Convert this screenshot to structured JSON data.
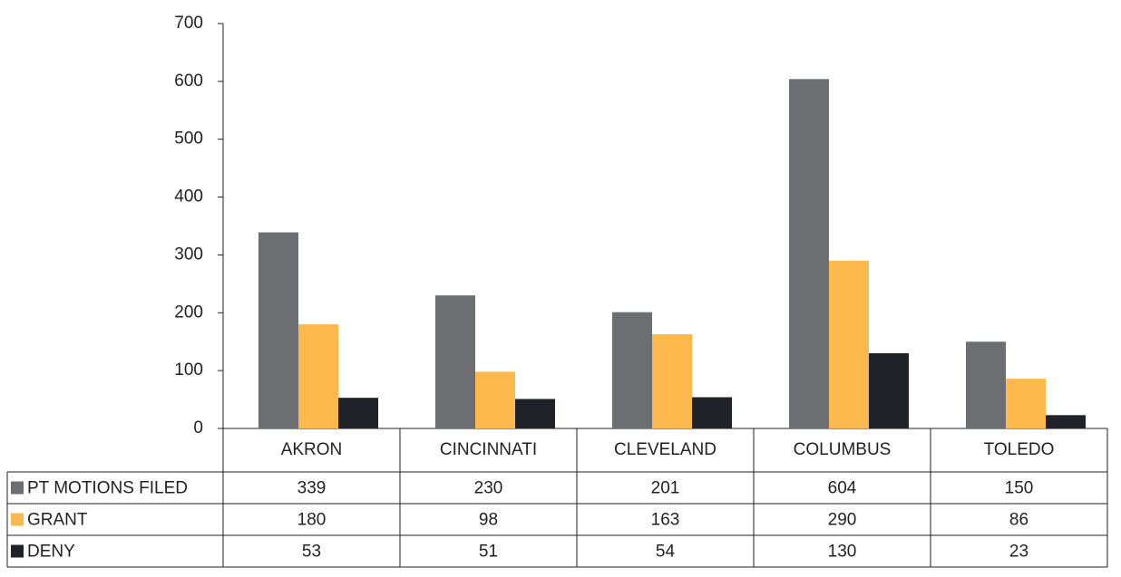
{
  "chart_data": {
    "type": "bar",
    "categories": [
      "AKRON",
      "CINCINNATI",
      "CLEVELAND",
      "COLUMBUS",
      "TOLEDO"
    ],
    "series": [
      {
        "name": "PT MOTIONS FILED",
        "color": "#6d6e71",
        "values": [
          339,
          230,
          201,
          604,
          150
        ]
      },
      {
        "name": "GRANT",
        "color": "#fdb94e",
        "values": [
          180,
          98,
          163,
          290,
          86
        ]
      },
      {
        "name": "DENY",
        "color": "#1f2229",
        "values": [
          53,
          51,
          54,
          130,
          23
        ]
      }
    ],
    "ylim": [
      0,
      700
    ],
    "yticks": [
      0,
      100,
      200,
      300,
      400,
      500,
      600,
      700
    ],
    "grid": false
  }
}
